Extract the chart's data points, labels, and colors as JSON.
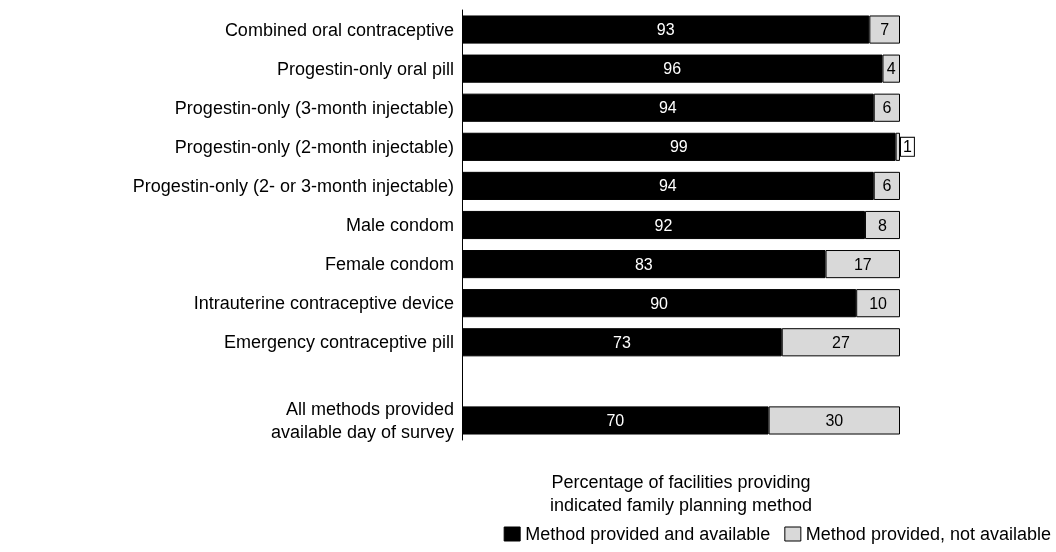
{
  "chart_data": {
    "type": "bar",
    "orientation": "horizontal",
    "stacked": true,
    "categories": [
      "Combined oral contraceptive",
      "Progestin-only oral pill",
      "Progestin-only (3-month injectable)",
      "Progestin-only (2-month injectable)",
      "Progestin-only (2- or 3-month injectable)",
      "Male condom",
      "Female condom",
      "Intrauterine contraceptive device",
      "Emergency contraceptive pill",
      null,
      "All methods provided\navailable day of survey"
    ],
    "series": [
      {
        "name": "Method provided and available",
        "color": "#000000",
        "values": [
          93,
          96,
          94,
          99,
          94,
          92,
          83,
          90,
          73,
          null,
          70
        ]
      },
      {
        "name": "Method provided, not available",
        "color": "#d9d9d9",
        "values": [
          7,
          4,
          6,
          1,
          6,
          8,
          17,
          10,
          27,
          null,
          30
        ]
      }
    ],
    "xlim": [
      0,
      100
    ],
    "xlabel": "Percentage of facilities providing\nindicated family planning method",
    "data_labels": true,
    "legend": "bottom",
    "grid": false,
    "tick_labels": "y"
  }
}
